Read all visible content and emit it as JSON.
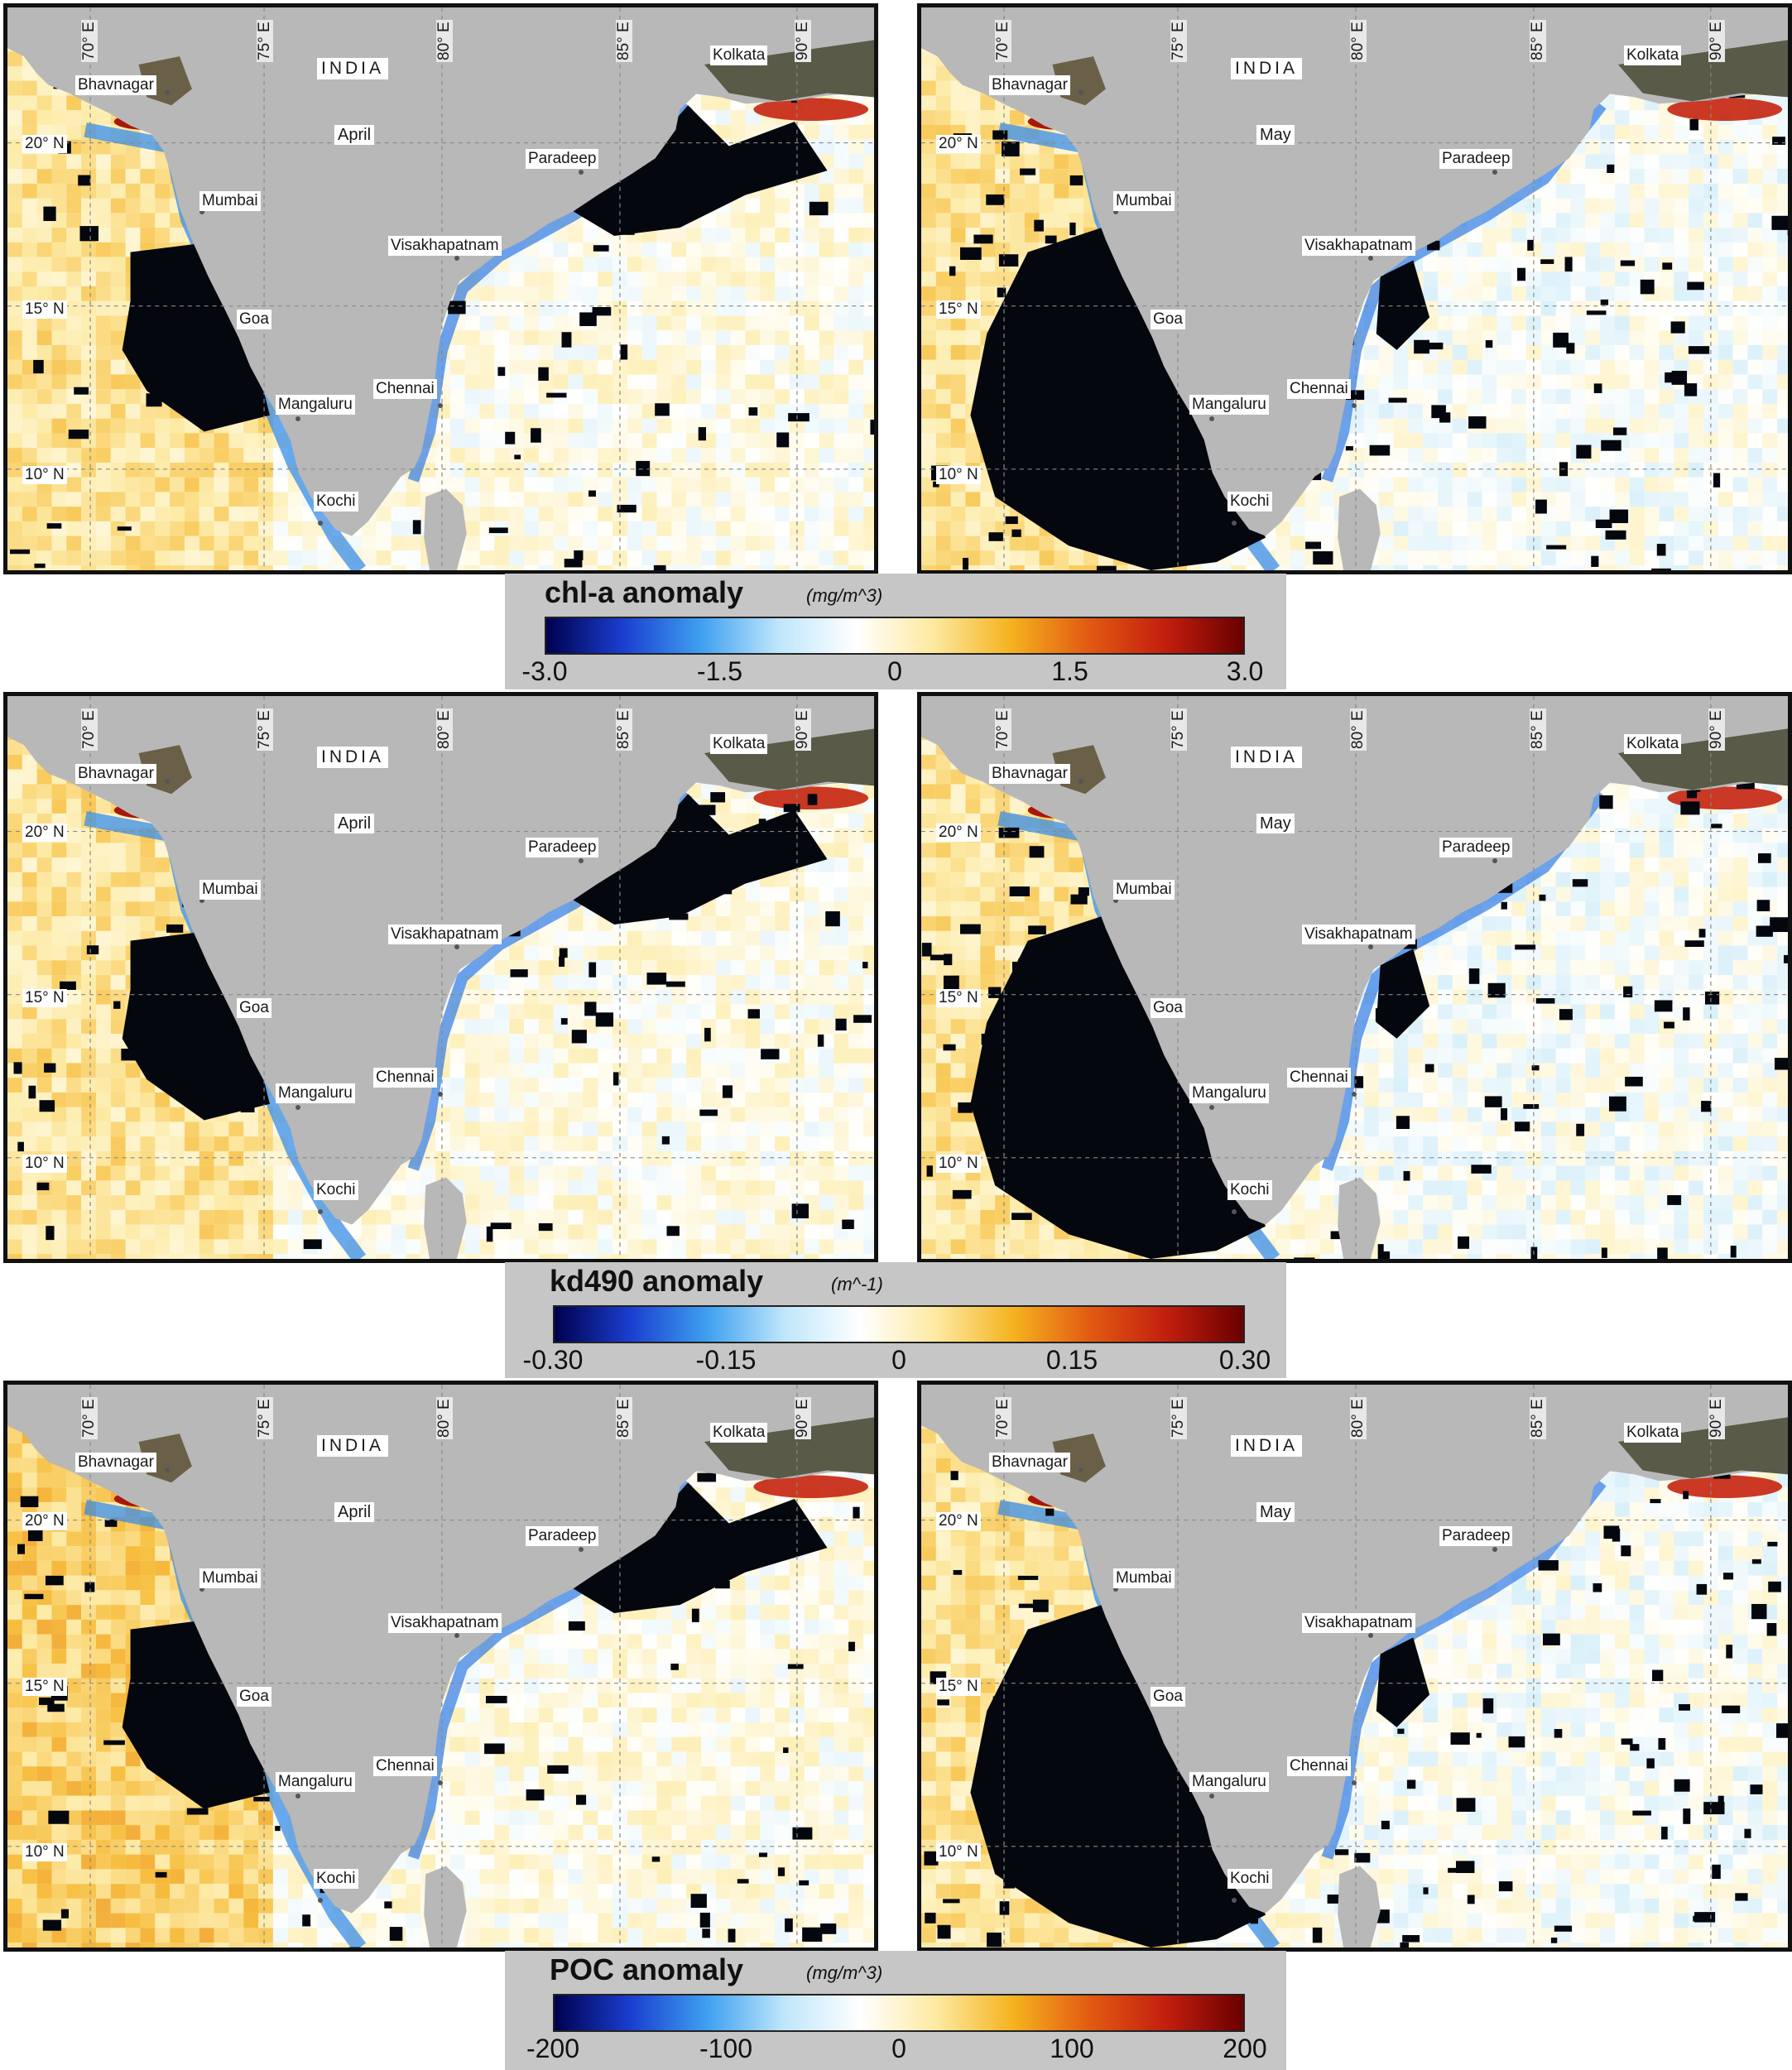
{
  "country": "INDIA",
  "longitudes": [
    "70° E",
    "75° E",
    "80° E",
    "85° E",
    "90° E"
  ],
  "latitudes": [
    "20° N",
    "15° N",
    "10° N"
  ],
  "places": [
    "Bhavnagar",
    "Mumbai",
    "Goa",
    "Mangaluru",
    "Kochi",
    "Chennai",
    "Visakhapatnam",
    "Paradeep",
    "Kolkata"
  ],
  "months": {
    "left": "April",
    "right": "May"
  },
  "colorbars": [
    {
      "title": "chl-a anomaly",
      "unit": "(mg/m^3)",
      "ticks": [
        "-3.0",
        "-1.5",
        "0",
        "1.5",
        "3.0"
      ]
    },
    {
      "title": "kd490 anomaly",
      "unit": "(m^-1)",
      "ticks": [
        "-0.30",
        "-0.15",
        "0",
        "0.15",
        "0.30"
      ]
    },
    {
      "title": "POC anomaly",
      "unit": "(mg/m^3)",
      "ticks": [
        "-200",
        "-100",
        "0",
        "100",
        "200"
      ]
    }
  ],
  "colors": {
    "land": "#b8b8b8",
    "no_data": "#05070f",
    "border": "#111111",
    "colormap": [
      "#00004f",
      "#1a3fd0",
      "#3fa0f0",
      "#bfe6fb",
      "#ffffff",
      "#fde9a0",
      "#f5b21e",
      "#e25a12",
      "#c21e0e",
      "#6a0000"
    ]
  }
}
